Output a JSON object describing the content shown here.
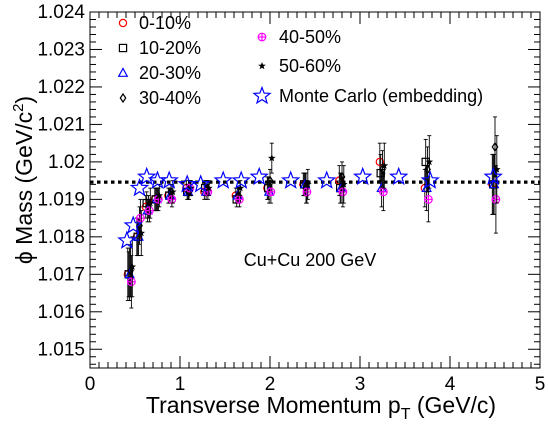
{
  "chart_data": {
    "type": "scatter",
    "xlabel_main": "Transverse Momentum p",
    "xlabel_sub": "T",
    "xlabel_unit": " (GeV/c)",
    "ylabel_main": "ϕ Mass (GeV/c",
    "ylabel_sup": "2",
    "ylabel_end": ")",
    "annotation": "Cu+Cu 200 GeV",
    "xlim": [
      0,
      5
    ],
    "ylim": [
      1.0145,
      1.024
    ],
    "x_ticks": [
      "0",
      "1",
      "2",
      "3",
      "4",
      "5"
    ],
    "y_ticks": [
      "1.015",
      "1.016",
      "1.017",
      "1.018",
      "1.019",
      "1.02",
      "1.021",
      "1.022",
      "1.023",
      "1.024"
    ],
    "reference_line": {
      "y": 1.01946,
      "style": "dotted"
    },
    "colors": {
      "c0": "#ff0000",
      "c1": "#000000",
      "c2": "#0000ff",
      "c3": "#000000",
      "c4": "#ff00ff",
      "c5": "#000000",
      "mc": "#0000ff"
    },
    "series": [
      {
        "name": "0-10%",
        "marker": "circle",
        "color_key": "c0",
        "x": [
          0.45,
          0.55,
          0.65,
          0.75,
          0.9,
          1.1,
          1.3,
          1.65,
          2.0,
          2.4,
          2.8,
          3.25,
          3.75,
          4.5
        ],
        "y": [
          1.017,
          1.018,
          1.0188,
          1.019,
          1.0191,
          1.0193,
          1.0192,
          1.0191,
          1.0193,
          1.0194,
          1.0195,
          1.02,
          1.0193,
          1.0194
        ],
        "err": [
          0.0007,
          0.0005,
          0.0003,
          0.0003,
          0.0002,
          0.0002,
          0.0002,
          0.0002,
          0.0003,
          0.0003,
          0.0004,
          0.0005,
          0.0005,
          0.0008
        ]
      },
      {
        "name": "10-20%",
        "marker": "square",
        "color_key": "c1",
        "x": [
          0.45,
          0.55,
          0.65,
          0.75,
          0.9,
          1.1,
          1.3,
          1.65,
          2.0,
          2.4,
          2.8,
          3.25,
          3.75,
          4.5
        ],
        "y": [
          1.017,
          1.018,
          1.0189,
          1.019,
          1.0191,
          1.0192,
          1.0193,
          1.019,
          1.0193,
          1.0194,
          1.0193,
          1.0197,
          1.02,
          1.0194
        ],
        "err": [
          0.0006,
          0.0005,
          0.0003,
          0.0003,
          0.0002,
          0.0002,
          0.0002,
          0.0002,
          0.0003,
          0.0003,
          0.0004,
          0.0005,
          0.0006,
          0.0008
        ]
      },
      {
        "name": "20-30%",
        "marker": "triangle",
        "color_key": "c2",
        "x": [
          0.45,
          0.55,
          0.65,
          0.75,
          0.9,
          1.1,
          1.3,
          1.65,
          2.0,
          2.4,
          2.8,
          3.25,
          3.75,
          4.5
        ],
        "y": [
          1.017,
          1.018,
          1.0187,
          1.019,
          1.0191,
          1.0192,
          1.0192,
          1.0191,
          1.0192,
          1.0194,
          1.0193,
          1.0193,
          1.0193,
          1.0194
        ],
        "err": [
          0.0007,
          0.0005,
          0.0003,
          0.0003,
          0.0002,
          0.0002,
          0.0002,
          0.0002,
          0.0003,
          0.0003,
          0.0004,
          0.0005,
          0.0006,
          0.0008
        ]
      },
      {
        "name": "30-40%",
        "marker": "diamond",
        "color_key": "c3",
        "x": [
          0.45,
          0.55,
          0.65,
          0.75,
          0.9,
          1.1,
          1.3,
          1.65,
          2.0,
          2.4,
          2.8,
          3.25,
          3.75,
          4.5
        ],
        "y": [
          1.0171,
          1.0183,
          1.0188,
          1.019,
          1.0192,
          1.0192,
          1.0193,
          1.0191,
          1.0195,
          1.0193,
          1.0196,
          1.0198,
          1.0198,
          1.0204
        ],
        "err": [
          0.0007,
          0.0005,
          0.0003,
          0.0003,
          0.0002,
          0.0002,
          0.0002,
          0.0002,
          0.0003,
          0.0004,
          0.0004,
          0.0005,
          0.0006,
          0.0008
        ]
      },
      {
        "name": "40-50%",
        "marker": "cross-circle",
        "color_key": "c4",
        "x": [
          0.45,
          0.55,
          0.65,
          0.75,
          0.9,
          1.1,
          1.3,
          1.65,
          2.0,
          2.4,
          2.8,
          3.25,
          3.75,
          4.5
        ],
        "y": [
          1.0168,
          1.0185,
          1.0187,
          1.019,
          1.019,
          1.0193,
          1.0192,
          1.019,
          1.0192,
          1.0192,
          1.0192,
          1.0192,
          1.019,
          1.019
        ],
        "err": [
          0.0007,
          0.0005,
          0.0003,
          0.0003,
          0.0002,
          0.0002,
          0.0002,
          0.0002,
          0.0003,
          0.0003,
          0.0004,
          0.0005,
          0.0006,
          0.0009
        ]
      },
      {
        "name": "50-60%",
        "marker": "star-small",
        "color_key": "c5",
        "x": [
          0.45,
          0.55,
          0.65,
          0.75,
          0.9,
          1.1,
          1.3,
          1.65,
          2.0,
          2.4,
          2.8,
          3.25,
          3.75,
          4.5
        ],
        "y": [
          1.0172,
          1.0181,
          1.0189,
          1.0191,
          1.0192,
          1.0193,
          1.0193,
          1.0193,
          1.0201,
          1.0194,
          1.0194,
          1.0199,
          1.02,
          1.0198
        ],
        "err": [
          0.0008,
          0.0006,
          0.0004,
          0.0003,
          0.0003,
          0.0002,
          0.0002,
          0.0002,
          0.0004,
          0.0004,
          0.0005,
          0.0006,
          0.0007,
          0.0009
        ]
      },
      {
        "name": "Monte Carlo (embedding)",
        "marker": "star-open",
        "color_key": "mc",
        "x": [
          0.38,
          0.45,
          0.52,
          0.6,
          0.72,
          0.85,
          1.05,
          1.2,
          1.45,
          1.65,
          1.85,
          2.2,
          2.6,
          3.0,
          3.4,
          3.75,
          4.45
        ],
        "y": [
          1.0179,
          1.0183,
          1.0193,
          1.0196,
          1.0195,
          1.0195,
          1.0194,
          1.0194,
          1.0195,
          1.0195,
          1.0196,
          1.0195,
          1.0195,
          1.0196,
          1.0196,
          1.0195,
          1.0196
        ],
        "err": [
          0,
          0,
          0,
          0,
          0,
          0,
          0,
          0,
          0,
          0,
          0,
          0,
          0,
          0,
          0,
          0,
          0
        ]
      }
    ]
  }
}
